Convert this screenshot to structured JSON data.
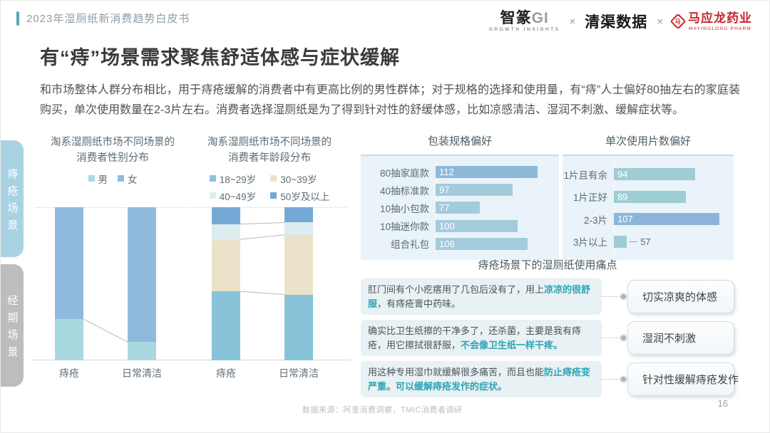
{
  "header": {
    "breadcrumb": "2023年湿厕纸新消费趋势白皮书",
    "accent_color": "#58a9b5",
    "logos": {
      "zhizhuan": {
        "name": "智篆",
        "suffix": "GI",
        "sub": "GROWTH INSIGHTS"
      },
      "sep": "×",
      "qingqu": "清渠数据",
      "mayinglong": {
        "name": "马应龙药业",
        "sub": "MAYINGLONG PHARM",
        "color": "#c5262c"
      }
    }
  },
  "title": "有“痔”场景需求聚焦舒适体感与症状缓解",
  "intro": "和市场整体人群分布相比，用于痔疮缓解的消费者中有更高比例的男性群体；对于规格的选择和使用量，有“痔”人士偏好80抽左右的家庭装购买，单次使用数量在2-3片左右。消费者选择湿厕纸是为了得到针对性的舒缓体感，比如凉感清洁、湿润不刺激、缓解症状等。",
  "sidebar": {
    "tabs": [
      {
        "label": "痔疮场景",
        "active": true,
        "color": "#a9d3e3"
      },
      {
        "label": "经期场景",
        "active": false,
        "color": "#bdbdbd"
      }
    ]
  },
  "chart_data": [
    {
      "type": "stacked_bar",
      "title": "淘系湿厕纸市场不同场景的消费者性别分布",
      "title_lines": [
        "淘系湿厕纸市场不同场景的",
        "消费者性别分布"
      ],
      "categories": [
        "痔疮",
        "日常清洁"
      ],
      "series": [
        {
          "name": "男",
          "color": "#aad8e1",
          "values": [
            27,
            12
          ]
        },
        {
          "name": "女",
          "color": "#90badc",
          "values": [
            73,
            88
          ]
        }
      ],
      "unit": "%",
      "stack_total": 100,
      "ylim": [
        0,
        100
      ],
      "legend_position": "top",
      "connectors": true,
      "bar_x": [
        28,
        130
      ]
    },
    {
      "type": "stacked_bar",
      "title": "淘系湿厕纸市场不同场景的消费者年龄段分布",
      "title_lines": [
        "淘系湿厕纸市场不同场景的",
        "消费者年龄段分布"
      ],
      "categories": [
        "痔疮",
        "日常清洁"
      ],
      "series": [
        {
          "name": "18~29岁",
          "color": "#89c3d9",
          "values": [
            45,
            43
          ]
        },
        {
          "name": "30~39岁",
          "color": "#ebe3c9",
          "values": [
            34,
            39
          ]
        },
        {
          "name": "40~49岁",
          "color": "#dcedf0",
          "values": [
            10,
            8
          ]
        },
        {
          "name": "50岁及以上",
          "color": "#74a9d5",
          "values": [
            11,
            10
          ]
        }
      ],
      "unit": "%",
      "stack_total": 100,
      "ylim": [
        0,
        100
      ],
      "legend_position": "top",
      "connectors": true,
      "bar_x": [
        28,
        130
      ]
    },
    {
      "type": "bar",
      "orientation": "horizontal",
      "title": "包装规格偏好",
      "categories": [
        "80抽家庭款",
        "40抽标准款",
        "10抽小包款",
        "10抽迷你款",
        "组合礼包"
      ],
      "values": [
        112,
        97,
        77,
        100,
        106
      ],
      "highlight_index": 0,
      "bar_color": "#a4cbdc",
      "highlight_color": "#8db8da",
      "xlim": [
        50,
        120
      ],
      "label_width": 95
    },
    {
      "type": "bar",
      "orientation": "horizontal",
      "title": "单次使用片数偏好",
      "categories": [
        "1片且有余",
        "1片正好",
        "2-3片",
        "3片以上"
      ],
      "values": [
        94,
        89,
        107,
        57
      ],
      "highlight_index": 2,
      "bar_color": "#9ecdd4",
      "highlight_color": "#8db5dc",
      "xlim": [
        50,
        110
      ],
      "label_width": 62
    }
  ],
  "pain_points": {
    "title": "痔疮场景下的湿厕纸使用痛点",
    "items": [
      {
        "quote": [
          {
            "text": "肛门间有个小疙瘩用了几包后没有了，用上",
            "highlight": false
          },
          {
            "text": "凉凉的很舒服",
            "highlight": true
          },
          {
            "text": "，有痔疮膏中药味。",
            "highlight": false
          }
        ],
        "label": "切实凉爽的体感"
      },
      {
        "quote": [
          {
            "text": "确实比卫生纸擦的干净多了，还杀菌，主要是我有痔疮，用它擦拭很舒服，",
            "highlight": false
          },
          {
            "text": "不会像卫生纸一样干疼。",
            "highlight": true
          }
        ],
        "label": "湿润不刺激"
      },
      {
        "quote": [
          {
            "text": "用这种专用湿巾就缓解很多痛苦，而且也能",
            "highlight": false
          },
          {
            "text": "防止痔疮变严重。可以缓解痔疮发作的症状。",
            "highlight": true
          }
        ],
        "label": "针对性缓解痔疮发作"
      }
    ]
  },
  "footer": {
    "source": "数据来源：阿里消费洞察，TMIC消费者调研",
    "page": "16"
  }
}
